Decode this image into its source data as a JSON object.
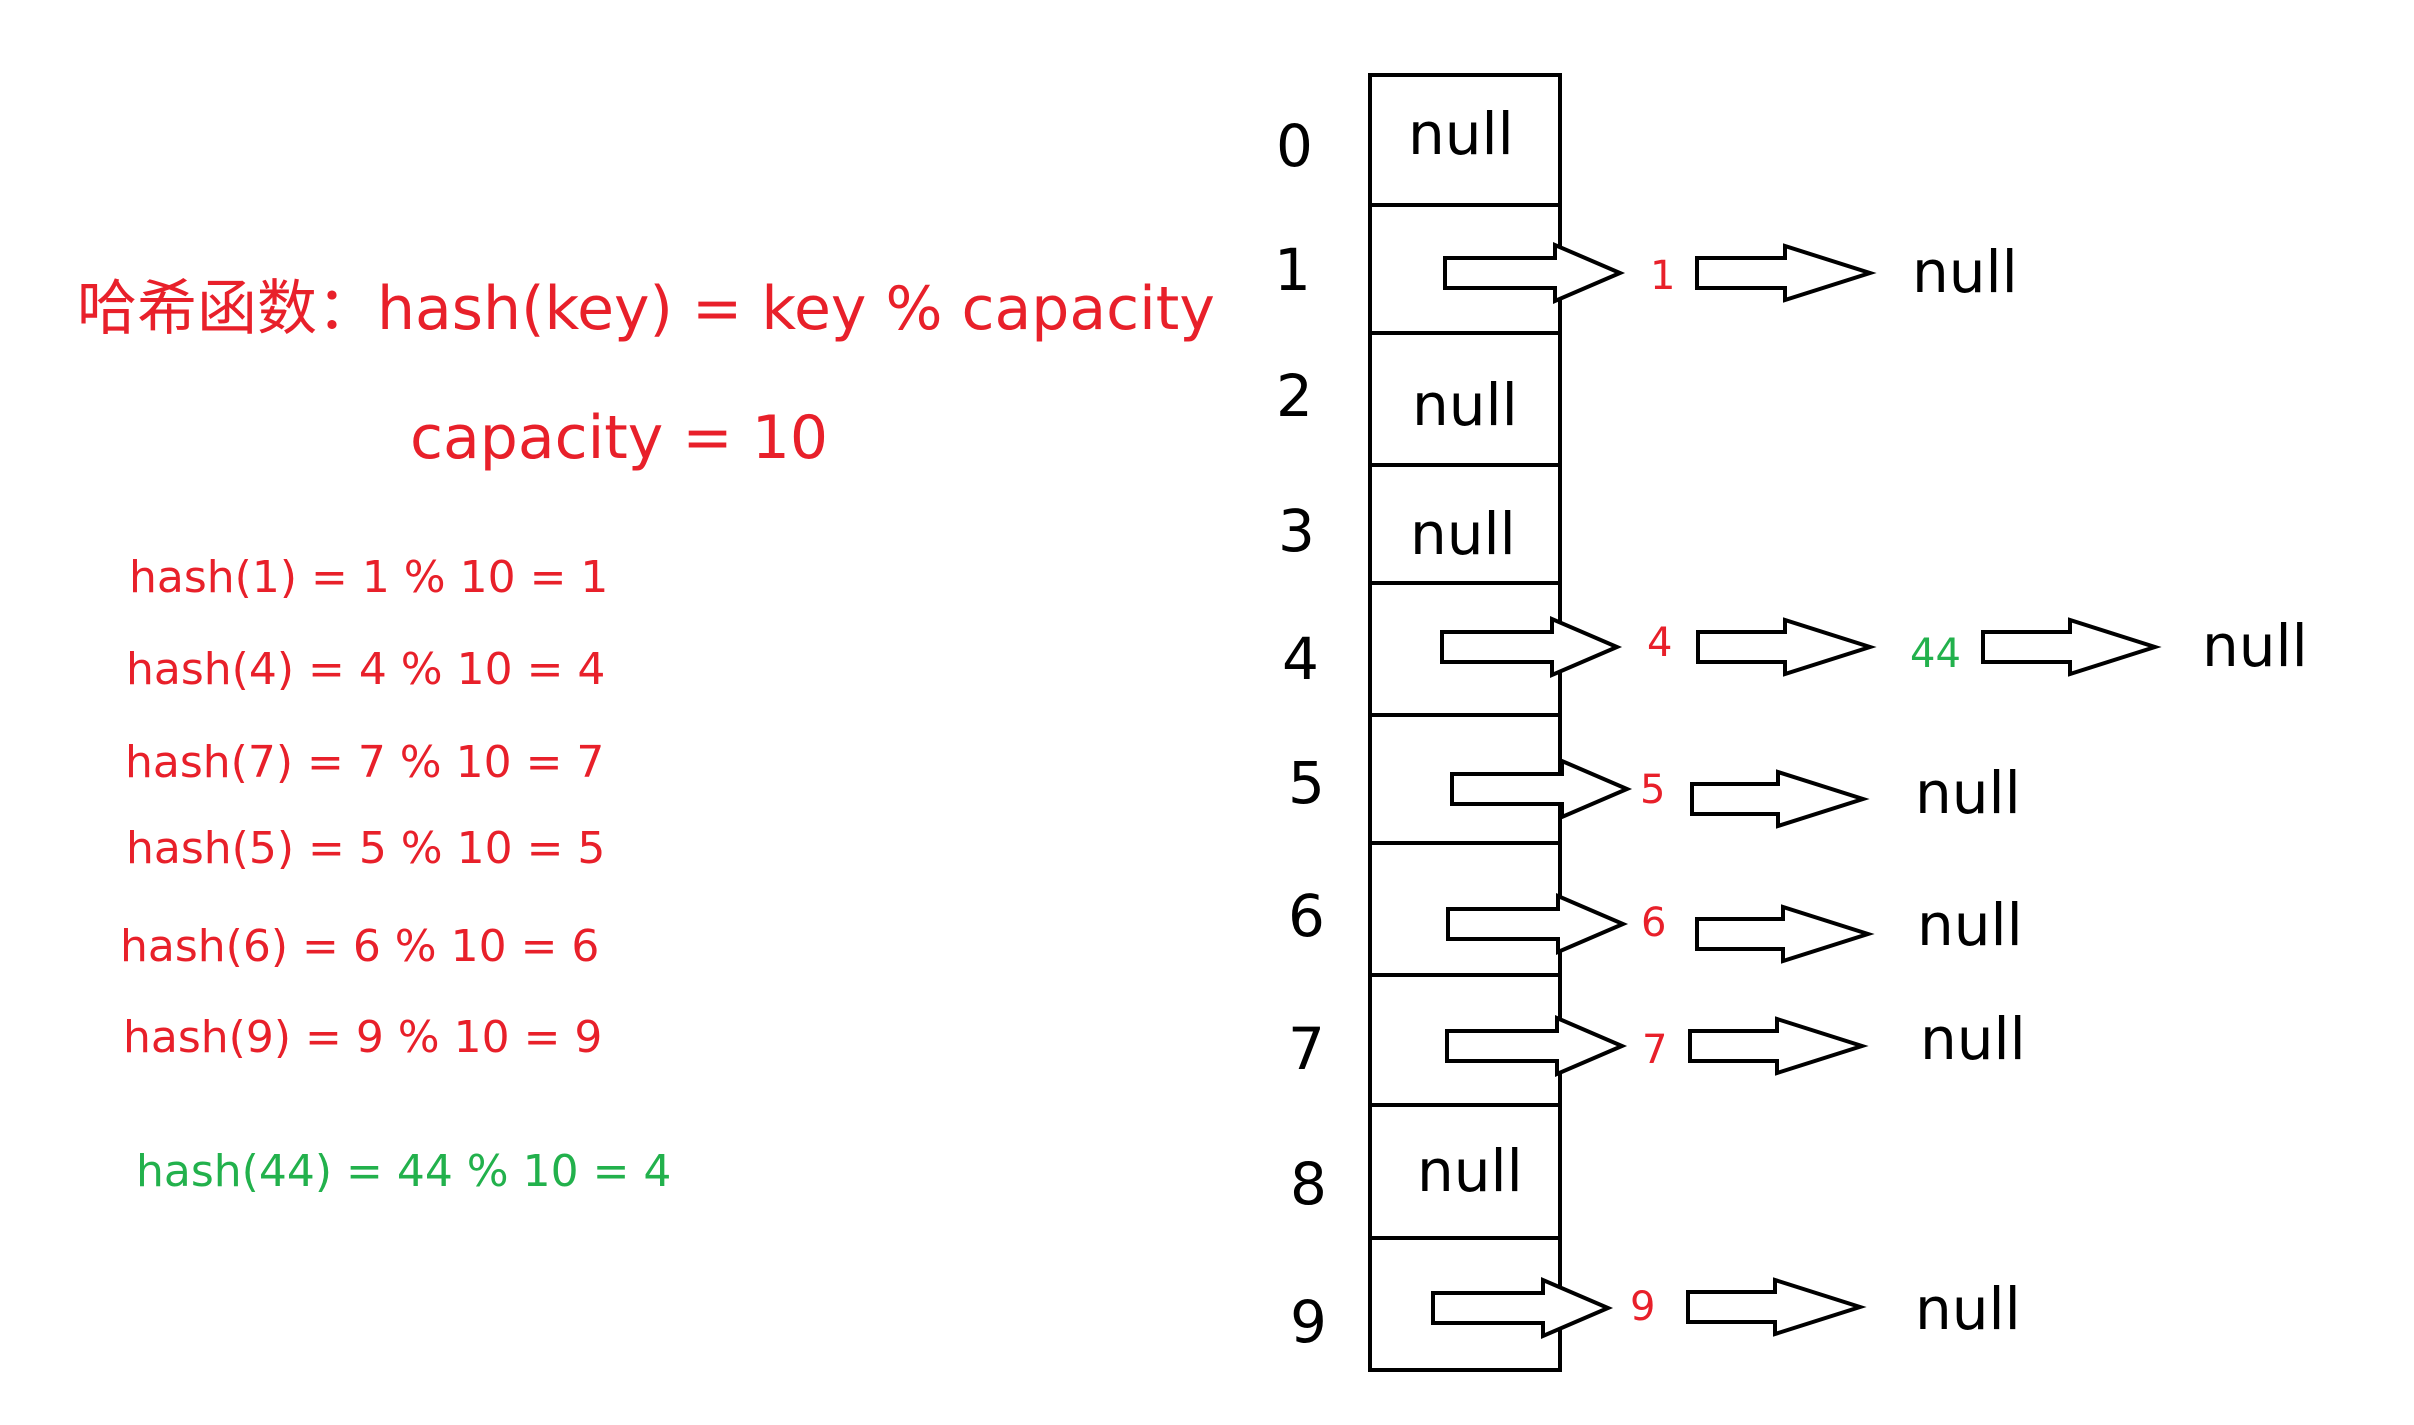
{
  "left": {
    "hash_function": "哈希函数：hash(key) = key % capacity",
    "capacity": "capacity = 10",
    "calculations": [
      "hash(1) = 1 % 10 = 1",
      "hash(4) = 4 % 10 = 4",
      "hash(7) = 7 % 10 = 7",
      "hash(5) = 5 % 10 = 5",
      "hash(6) = 6 % 10 = 6",
      "hash(9) = 9 % 10 = 9"
    ],
    "collision_calc": "hash(44) = 44 % 10 = 4"
  },
  "table": {
    "indices": [
      "0",
      "1",
      "2",
      "3",
      "4",
      "5",
      "6",
      "7",
      "8",
      "9"
    ],
    "empty_label": "null",
    "empty_slots": [
      "0",
      "2",
      "3",
      "8"
    ]
  },
  "chains": {
    "bucket_1": {
      "node": "1",
      "end": "null"
    },
    "bucket_4": {
      "node": "4",
      "collision_node": "44",
      "end": "null"
    },
    "bucket_5": {
      "node": "5",
      "end": "null"
    },
    "bucket_6": {
      "node": "6",
      "end": "null"
    },
    "bucket_7": {
      "node": "7",
      "end": "null"
    },
    "bucket_9": {
      "node": "9",
      "end": "null"
    }
  },
  "colors": {
    "text_red": "#e8202a",
    "text_green": "#22b14c",
    "stroke": "#000000"
  }
}
